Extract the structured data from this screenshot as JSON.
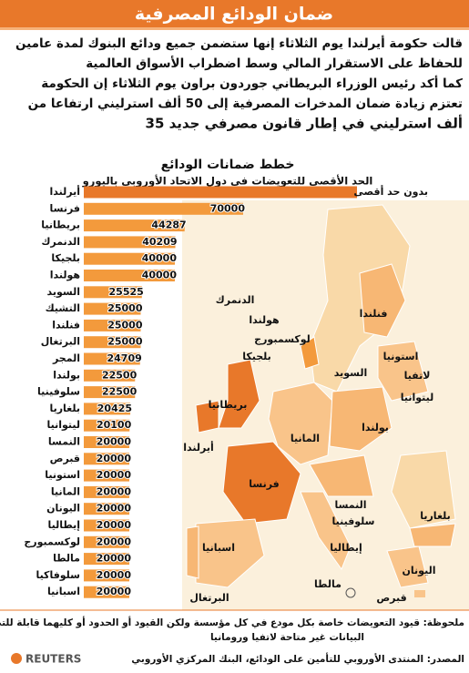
{
  "header": {
    "title": "ضمان الودائع المصرفية"
  },
  "paragraphs": [
    "قالت حكومة أيرلندا يوم الثلاثاء إنها ستضمن جميع ودائع البنوك لمدة عامين",
    "للحفاظ على الاستقرار المالي وسط اضطراب الأسواق العالمية",
    "كما أكد رئيس الوزراء البريطاني جوردون براون يوم الثلاثاء إن الحكومة",
    "تعتزم زيادة ضمان المدخرات المصرفية إلى 50 ألف استرليني ارتفاعا من",
    "35 ألف استرليني في إطار قانون مصرفي جديد"
  ],
  "chart_data": {
    "type": "bar",
    "title": "خطط ضمانات الودائع",
    "subtitle": "الحد الأقصى للتعويضات في دول الاتحاد الأوروبي باليورو",
    "categories": [
      "أيرلندا",
      "فرنسا",
      "بريطانيا",
      "الدنمرك",
      "بلجيكا",
      "هولندا",
      "السويد",
      "التشيك",
      "فنلندا",
      "البرتغال",
      "المجر",
      "بولندا",
      "سلوفينيا",
      "بلغاريا",
      "ليتوانيا",
      "النمسا",
      "قبرص",
      "استونيا",
      "المانيا",
      "اليونان",
      "إيطاليا",
      "لوكسمبورج",
      "مالطا",
      "سلوفاكيا",
      "اسبانيا"
    ],
    "values": [
      null,
      70000,
      44287,
      40209,
      40000,
      40000,
      25525,
      25000,
      25000,
      25000,
      24709,
      22500,
      22500,
      20425,
      20100,
      20000,
      20000,
      20000,
      20000,
      20000,
      20000,
      20000,
      20000,
      20000,
      20000
    ],
    "no_limit_label": "بدون حد أقصى",
    "color": "#f39a3c"
  },
  "map": {
    "labels": [
      "فنلندا",
      "الدنمرك",
      "هولندا",
      "لوكسمبورج",
      "بلجيكا",
      "السويد",
      "استونيا",
      "لاتفيا",
      "ليتوانيا",
      "بريطانيا",
      "المانيا",
      "بولندا",
      "أيرلندا",
      "فرنسا",
      "النمسا",
      "سلوفينيا",
      "بلغاريا",
      "اسبانيا",
      "إيطاليا",
      "اليونان",
      "البرتغال",
      "مالطا",
      "قبرص"
    ]
  },
  "note": [
    "ملحوظة: قيود التعويضات خاصة بكل مودع في كل مؤسسة ولكن القيود أو الحدود أو كليهما قابلة للتطبيق",
    "البيانات غير متاحة لاتفيا ورومانيا"
  ],
  "source": "المصدر: المنتدى الأوروبي للتأمين على الودائع، البنك المركزي الأوروبي",
  "logo": "REUTERS"
}
